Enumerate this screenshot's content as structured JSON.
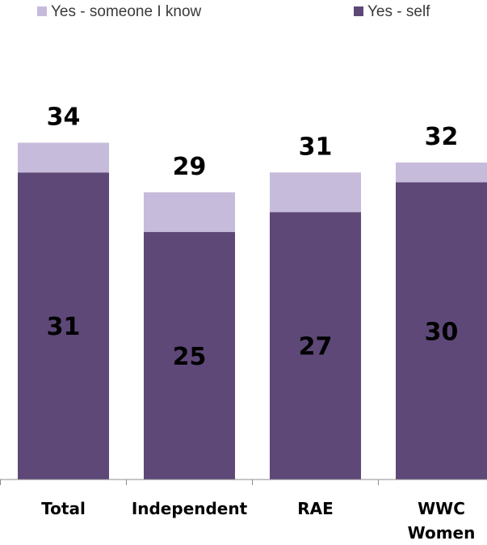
{
  "chart_data": {
    "type": "bar",
    "stacked": true,
    "categories": [
      "Total",
      "Independent",
      "RAE",
      "WWC Women"
    ],
    "series": [
      {
        "name": "Yes - self",
        "values": [
          31,
          25,
          27,
          30
        ],
        "color": "#5e4878"
      },
      {
        "name": "Yes - someone I know",
        "values": [
          3,
          4,
          4,
          2
        ],
        "color": "#c7bbdb"
      }
    ],
    "totals": [
      34,
      29,
      31,
      32
    ],
    "ylim": [
      0,
      36
    ],
    "legend_placement": "top",
    "grid": false
  }
}
